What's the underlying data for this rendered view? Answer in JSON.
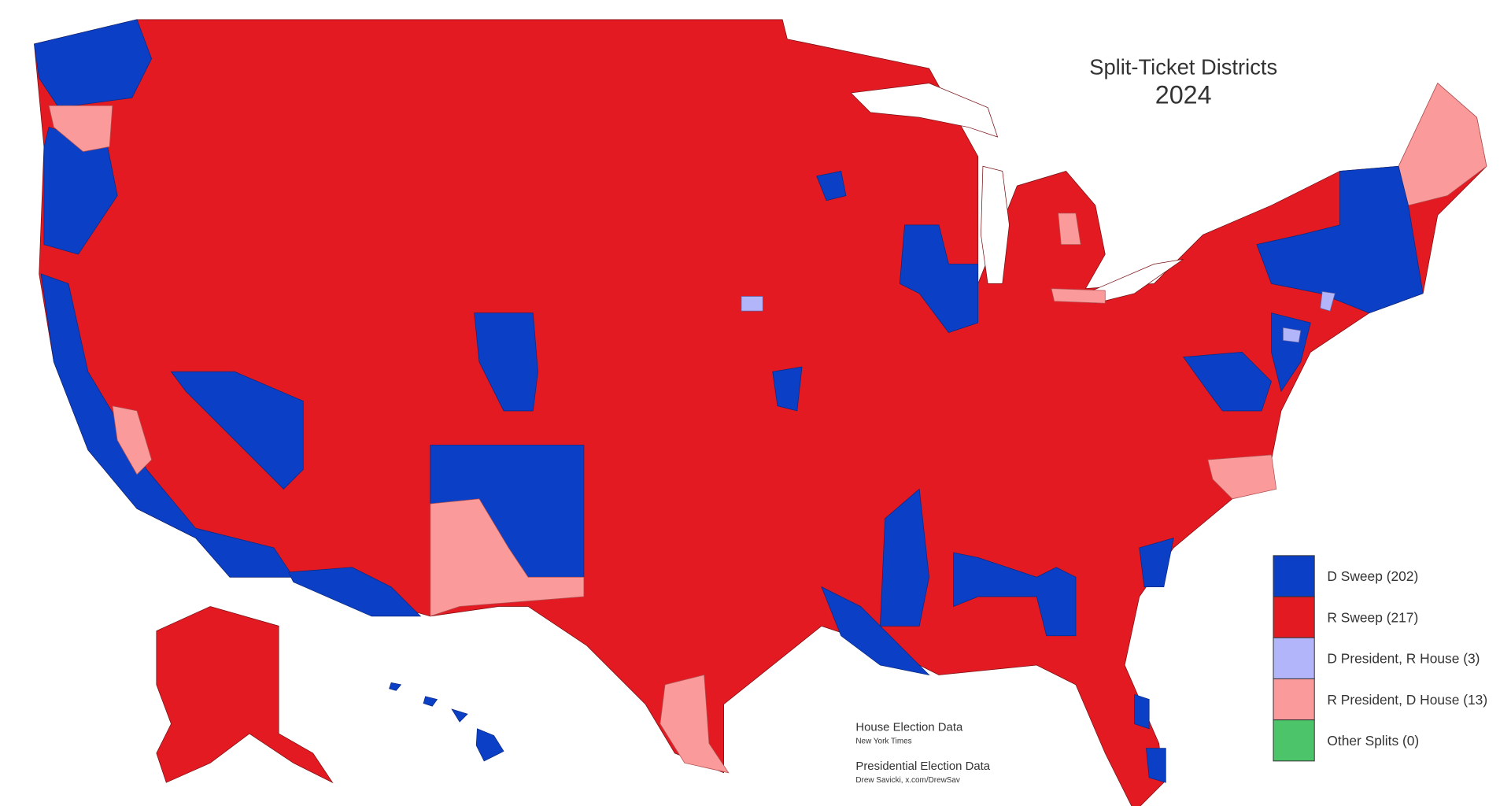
{
  "title": "Split-Ticket Districts",
  "subtitle": "2024",
  "legend": [
    {
      "label": "D Sweep (202)",
      "color": "#0a3fc6"
    },
    {
      "label": "R Sweep (217)",
      "color": "#e31a22"
    },
    {
      "label": "D President, R House (3)",
      "color": "#b3b5fb"
    },
    {
      "label": "R President, D House (13)",
      "color": "#fa9a9a"
    },
    {
      "label": "Other Splits (0)",
      "color": "#4cc56a"
    }
  ],
  "credits": [
    {
      "heading": "House Election Data",
      "source": "New York Times"
    },
    {
      "heading": "Presidential Election Data",
      "source": "Drew Savicki, x.com/DrewSav"
    }
  ]
}
